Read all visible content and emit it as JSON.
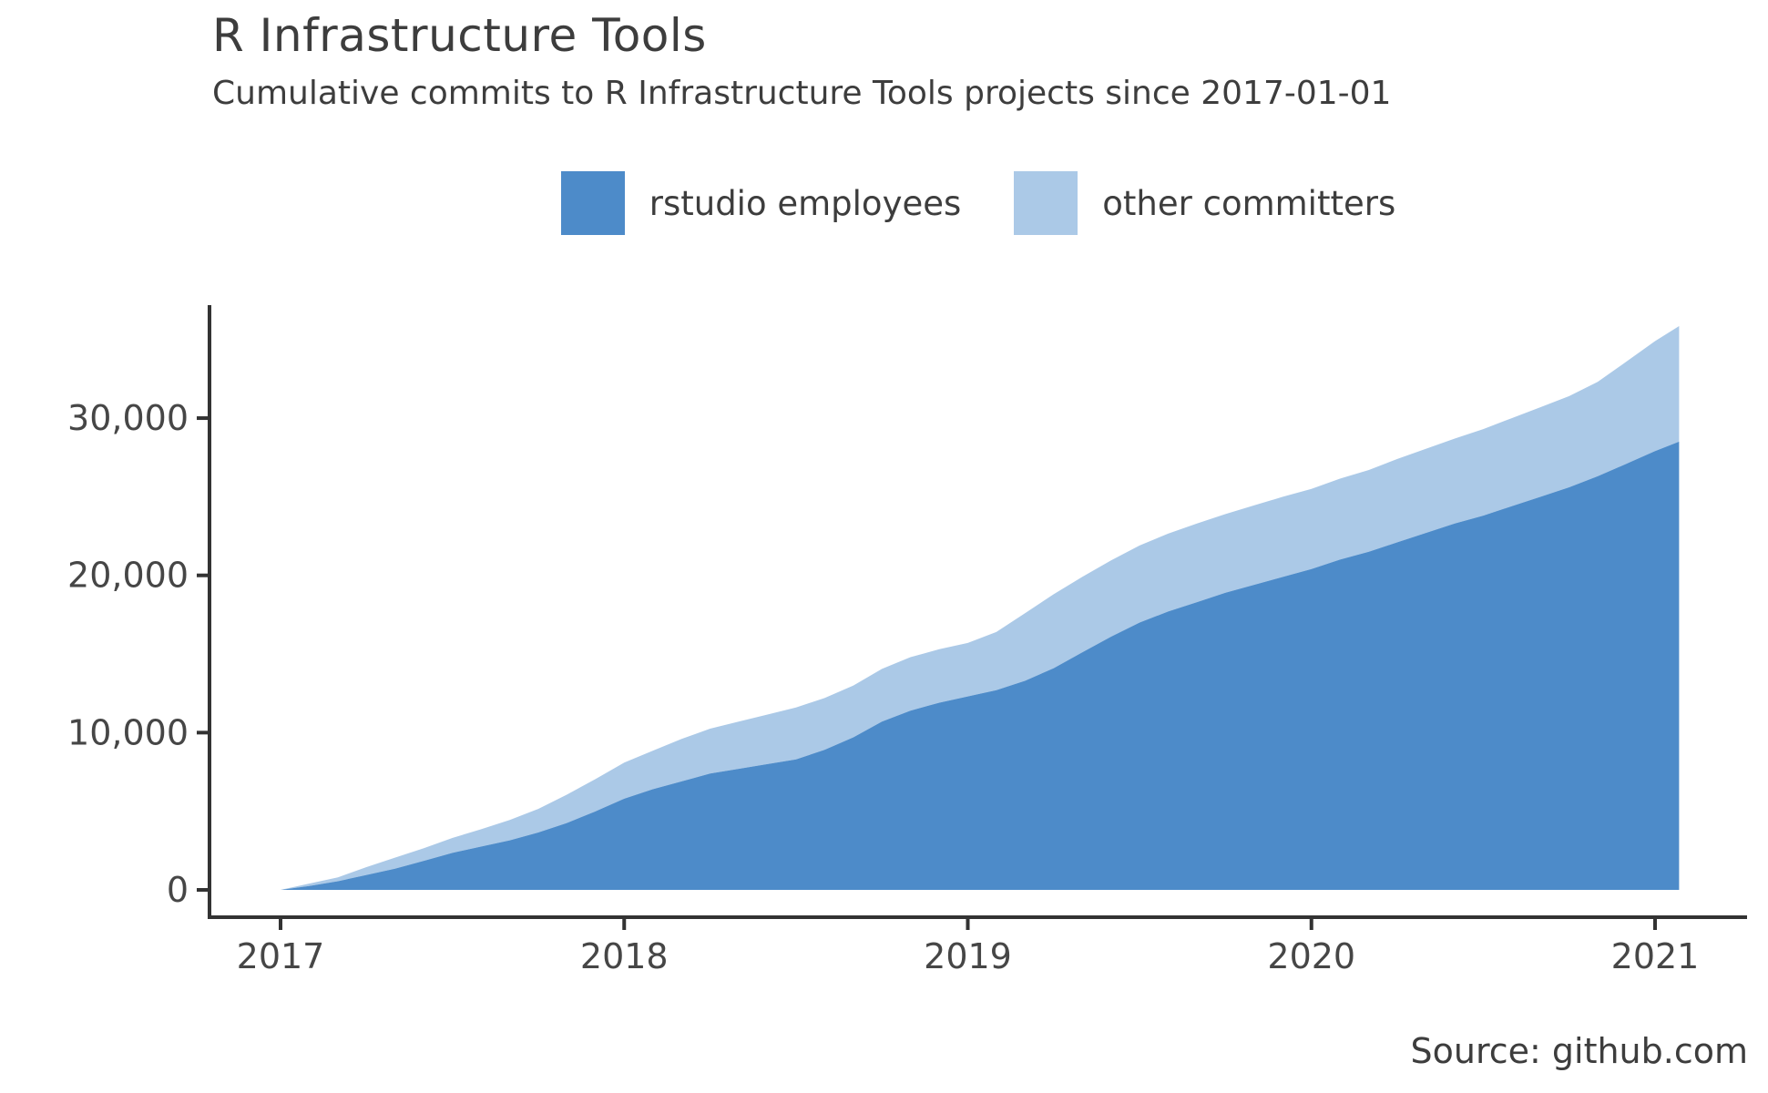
{
  "header": {
    "title": "R Infrastructure Tools",
    "subtitle": "Cumulative commits to R Infrastructure Tools projects since 2017-01-01"
  },
  "legend": {
    "items": [
      {
        "label": "rstudio employees",
        "color": "#4d8bc9"
      },
      {
        "label": "other committers",
        "color": "#abc9e7"
      }
    ]
  },
  "source_note": "Source: github.com",
  "colors": {
    "rstudio_employees": "#4d8bc9",
    "other_committers": "#abc9e7",
    "axis_line": "#333333",
    "tick_text": "#464646",
    "heading_text": "#3d3d3d"
  },
  "chart_data": {
    "type": "area",
    "stacked": true,
    "title": "R Infrastructure Tools",
    "subtitle": "Cumulative commits to R Infrastructure Tools projects since 2017-01-01",
    "xlabel": "",
    "ylabel": "",
    "grid": false,
    "legend_position": "top",
    "xlim": [
      2016.79,
      2021.27
    ],
    "ylim": [
      -1700,
      37200
    ],
    "x_ticks": [
      {
        "value": 2017,
        "label": "2017"
      },
      {
        "value": 2018,
        "label": "2018"
      },
      {
        "value": 2019,
        "label": "2019"
      },
      {
        "value": 2020,
        "label": "2020"
      },
      {
        "value": 2021,
        "label": "2021"
      }
    ],
    "y_ticks": [
      {
        "value": 0,
        "label": "0"
      },
      {
        "value": 10000,
        "label": "10,000"
      },
      {
        "value": 20000,
        "label": "20,000"
      },
      {
        "value": 30000,
        "label": "30,000"
      }
    ],
    "x": [
      2017.0,
      2017.083,
      2017.167,
      2017.25,
      2017.333,
      2017.417,
      2017.5,
      2017.583,
      2017.667,
      2017.75,
      2017.833,
      2017.917,
      2018.0,
      2018.083,
      2018.167,
      2018.25,
      2018.333,
      2018.417,
      2018.5,
      2018.583,
      2018.667,
      2018.75,
      2018.833,
      2018.917,
      2019.0,
      2019.083,
      2019.167,
      2019.25,
      2019.333,
      2019.417,
      2019.5,
      2019.583,
      2019.667,
      2019.75,
      2019.833,
      2019.917,
      2020.0,
      2020.083,
      2020.167,
      2020.25,
      2020.333,
      2020.417,
      2020.5,
      2020.583,
      2020.667,
      2020.75,
      2020.833,
      2020.917,
      2021.0,
      2021.07
    ],
    "series": [
      {
        "name": "rstudio employees",
        "color": "#4d8bc9",
        "values": [
          0,
          250,
          550,
          950,
          1350,
          1850,
          2350,
          2750,
          3150,
          3650,
          4250,
          5000,
          5800,
          6400,
          6900,
          7400,
          7700,
          8000,
          8300,
          8900,
          9700,
          10700,
          11400,
          11900,
          12300,
          12700,
          13300,
          14100,
          15100,
          16100,
          17000,
          17700,
          18300,
          18900,
          19400,
          19900,
          20400,
          21000,
          21500,
          22100,
          22700,
          23300,
          23800,
          24400,
          25000,
          25600,
          26300,
          27100,
          27900,
          28500
        ]
      },
      {
        "name": "other committers",
        "color": "#abc9e7",
        "values": [
          0,
          150,
          250,
          500,
          700,
          800,
          950,
          1100,
          1300,
          1500,
          1800,
          2050,
          2300,
          2450,
          2700,
          2850,
          3000,
          3150,
          3300,
          3300,
          3300,
          3350,
          3400,
          3400,
          3400,
          3700,
          4300,
          4700,
          4800,
          4850,
          4900,
          4950,
          5000,
          5000,
          5050,
          5100,
          5100,
          5150,
          5200,
          5300,
          5350,
          5400,
          5500,
          5600,
          5700,
          5800,
          6000,
          6500,
          7000,
          7350
        ]
      }
    ]
  }
}
